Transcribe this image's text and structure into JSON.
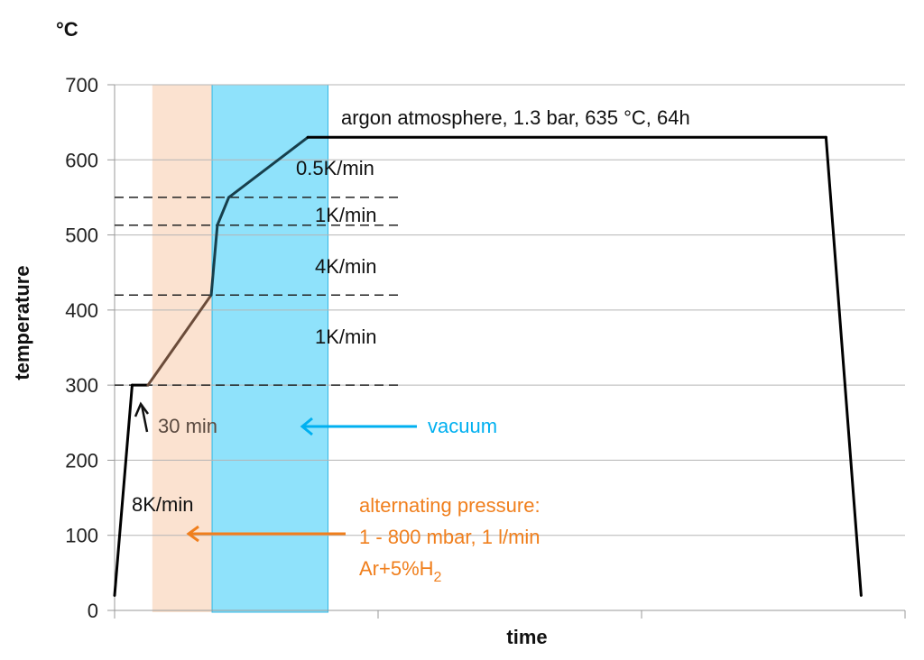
{
  "chart_data": {
    "type": "line",
    "unit_label": "°C",
    "ylabel": "temperature",
    "xlabel": "time",
    "ylim": [
      0,
      700
    ],
    "yticks": [
      "0",
      "100",
      "200",
      "300",
      "400",
      "500",
      "600",
      "700"
    ],
    "grid": true,
    "series": [
      {
        "points": [
          {
            "x": 0.0,
            "y": 20
          },
          {
            "x": 0.2,
            "y": 300
          },
          {
            "x": 0.38,
            "y": 300
          },
          {
            "x": 1.1,
            "y": 420
          },
          {
            "x": 1.17,
            "y": 513
          },
          {
            "x": 1.3,
            "y": 550
          },
          {
            "x": 2.2,
            "y": 630
          },
          {
            "x": 8.1,
            "y": 630
          },
          {
            "x": 8.5,
            "y": 20
          }
        ]
      }
    ],
    "shaded_regions": [
      {
        "label": "alternating pressure",
        "x0": 0.43,
        "x1": 1.11,
        "color": "#fbe2d0"
      },
      {
        "label": "vacuum",
        "x0": 1.11,
        "x1": 2.43,
        "color": "#8fe2fb"
      }
    ],
    "reference_lines": [
      {
        "y": 300,
        "style": "dashed"
      },
      {
        "y": 420,
        "style": "dashed"
      },
      {
        "y": 513,
        "style": "dashed"
      },
      {
        "y": 550,
        "style": "dashed"
      }
    ],
    "annotations": {
      "argon": "argon atmosphere, 1.3 bar, 635 °C, 64h",
      "rate_05": "0.5K/min",
      "rate_1a": "1K/min",
      "rate_4": "4K/min",
      "rate_1b": "1K/min",
      "hold": "30 min",
      "vacuum": "vacuum",
      "rate_8": "8K/min",
      "alt_line1": "alternating pressure:",
      "alt_line2": "1 - 800 mbar, 1 l/min",
      "alt_line3_main": "Ar+5%H",
      "alt_line3_sub": "2"
    },
    "colors": {
      "vacuum": "#00b0f0",
      "alternating": "#f07f1d",
      "line": "#000000",
      "line_mid": "#6b4c3a",
      "line_upper": "#173f4c"
    }
  }
}
